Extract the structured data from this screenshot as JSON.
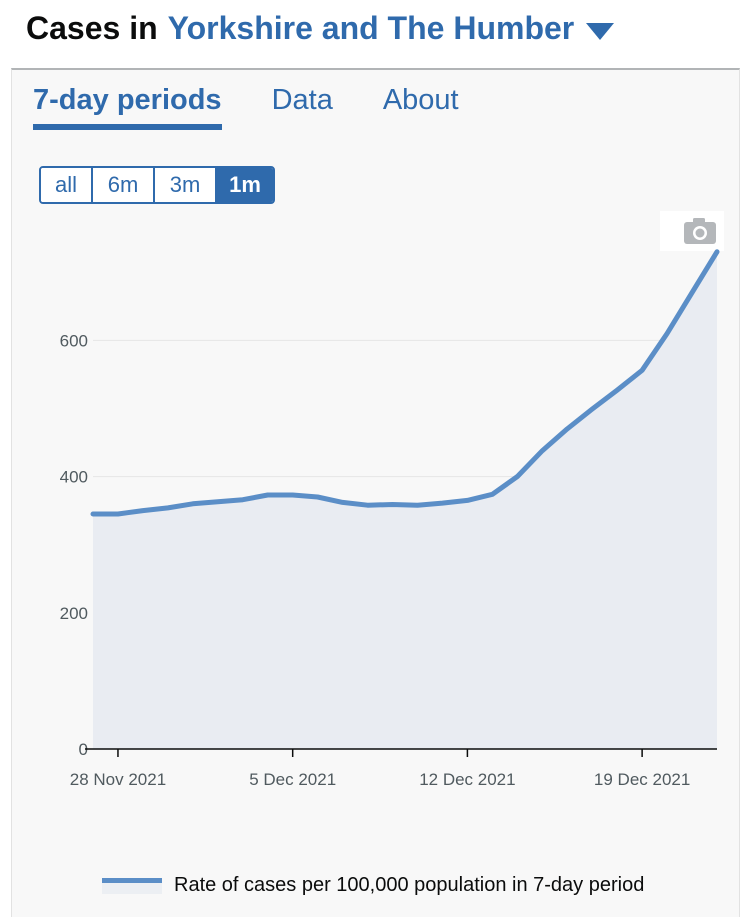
{
  "header": {
    "lead": "Cases in",
    "region": "Yorkshire and The Humber"
  },
  "tabs": [
    {
      "label": "7-day periods",
      "active": true
    },
    {
      "label": "Data",
      "active": false
    },
    {
      "label": "About",
      "active": false
    }
  ],
  "range_buttons": [
    {
      "label": "all",
      "active": false
    },
    {
      "label": "6m",
      "active": false
    },
    {
      "label": "3m",
      "active": false
    },
    {
      "label": "1m",
      "active": true
    }
  ],
  "icons": {
    "camera": "camera-icon",
    "dropdown": "chevron-down-icon"
  },
  "colors": {
    "accent": "#2f6aac",
    "line": "#5b8ec7",
    "area": "#e9ecf2"
  },
  "chart_data": {
    "type": "area",
    "x_ticks": [
      "28 Nov 2021",
      "5 Dec 2021",
      "12 Dec 2021",
      "19 Dec 2021"
    ],
    "x": [
      "2021-11-27",
      "2021-11-28",
      "2021-11-29",
      "2021-11-30",
      "2021-12-01",
      "2021-12-02",
      "2021-12-03",
      "2021-12-04",
      "2021-12-05",
      "2021-12-06",
      "2021-12-07",
      "2021-12-08",
      "2021-12-09",
      "2021-12-10",
      "2021-12-11",
      "2021-12-12",
      "2021-12-13",
      "2021-12-14",
      "2021-12-15",
      "2021-12-16",
      "2021-12-17",
      "2021-12-18",
      "2021-12-19",
      "2021-12-20",
      "2021-12-21",
      "2021-12-22"
    ],
    "series": [
      {
        "name": "Rate of cases per 100,000 population in 7-day period",
        "values": [
          345,
          345,
          350,
          354,
          360,
          363,
          366,
          373,
          373,
          370,
          362,
          358,
          359,
          358,
          361,
          365,
          374,
          400,
          438,
          470,
          499,
          527,
          556,
          610,
          670,
          730
        ]
      }
    ],
    "ylim": [
      0,
      740
    ],
    "y_ticks": [
      0,
      200,
      400,
      600
    ],
    "grid": true,
    "legend": "bottom"
  }
}
